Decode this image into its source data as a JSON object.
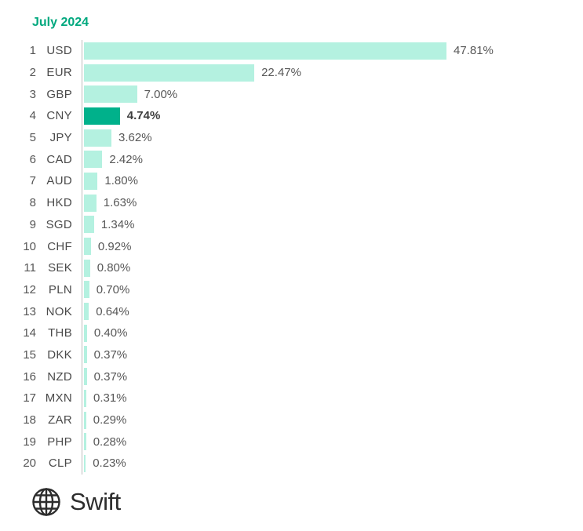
{
  "title": "July 2024",
  "brand": {
    "name": "Swift"
  },
  "colors": {
    "bar": "#b4f1e0",
    "bar_highlight": "#00b18b",
    "title": "#00a87e",
    "axis": "#bdbdbd",
    "value_text": "#575757",
    "highlight_value_text": "#3d3d3d",
    "logo_text": "#2d2d2d"
  },
  "chart_data": {
    "type": "bar",
    "orientation": "horizontal",
    "title": "July 2024",
    "unit": "%",
    "xlim": [
      0,
      50
    ],
    "grid": false,
    "legend": false,
    "highlight_category": "CNY",
    "ranks": [
      1,
      2,
      3,
      4,
      5,
      6,
      7,
      8,
      9,
      10,
      11,
      12,
      13,
      14,
      15,
      16,
      17,
      18,
      19,
      20
    ],
    "categories": [
      "USD",
      "EUR",
      "GBP",
      "CNY",
      "JPY",
      "CAD",
      "AUD",
      "HKD",
      "SGD",
      "CHF",
      "SEK",
      "PLN",
      "NOK",
      "THB",
      "DKK",
      "NZD",
      "MXN",
      "ZAR",
      "PHP",
      "CLP"
    ],
    "values": [
      47.81,
      22.47,
      7.0,
      4.74,
      3.62,
      2.42,
      1.8,
      1.63,
      1.34,
      0.92,
      0.8,
      0.7,
      0.64,
      0.4,
      0.37,
      0.37,
      0.31,
      0.29,
      0.28,
      0.23
    ],
    "value_labels": [
      "47.81%",
      "22.47%",
      "7.00%",
      "4.74%",
      "3.62%",
      "2.42%",
      "1.80%",
      "1.63%",
      "1.34%",
      "0.92%",
      "0.80%",
      "0.70%",
      "0.64%",
      "0.40%",
      "0.37%",
      "0.37%",
      "0.31%",
      "0.29%",
      "0.28%",
      "0.23%"
    ]
  }
}
